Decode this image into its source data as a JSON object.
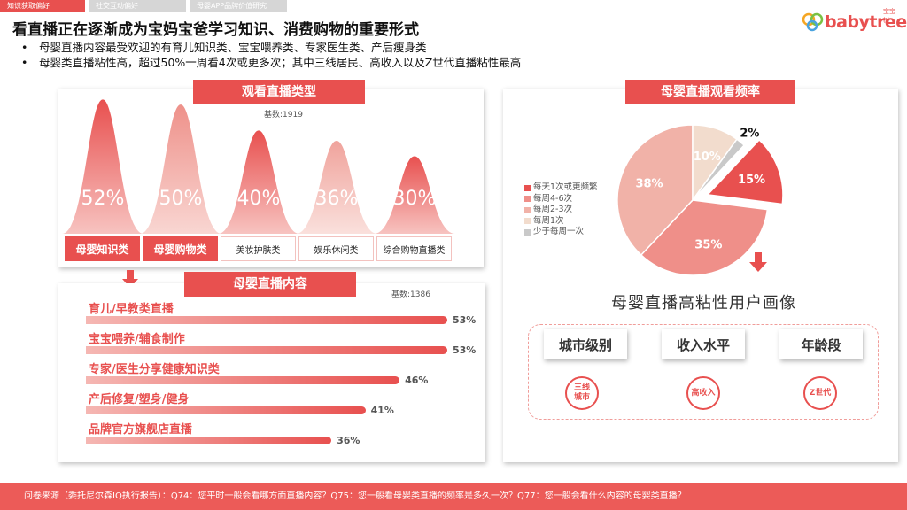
{
  "tabs": [
    "知识获取偏好",
    "社交互动偏好",
    "母婴APP品牌价值研究"
  ],
  "logo": {
    "text": "babytree",
    "cn": "宝宝树"
  },
  "title": "看直播正在逐渐成为宝妈宝爸学习知识、消费购物的重要形式",
  "bullets": [
    "母婴直播内容最受欢迎的有育儿知识类、宝宝喂养类、专家医生类、产后瘦身类",
    "母婴类直播粘性高，超过50%一周看4次或更多次；其中三线居民、高收入以及Z世代直播粘性最高"
  ],
  "footer": "问卷来源（委托尼尔森IQ执行报告）：Q74：您平时一般会看哪方面直播内容？Q75：您一般看母婴类直播的频率是多久一次？Q77：您一般会看什么内容的母婴类直播？",
  "colors": {
    "accent": "#e8504f",
    "light": "#f3b0ad"
  },
  "chart_data": [
    {
      "type": "area",
      "title": "观看直播类型",
      "base": "基数:1919",
      "categories": [
        "母婴知识类",
        "母婴购物类",
        "美妆护肤类",
        "娱乐休闲类",
        "综合购物直播类"
      ],
      "values": [
        52,
        50,
        40,
        36,
        30
      ],
      "value_labels": [
        "52%",
        "50%",
        "40%",
        "36%",
        "30%"
      ],
      "highlighted": [
        true,
        true,
        false,
        false,
        false
      ]
    },
    {
      "type": "bar",
      "title": "母婴直播内容",
      "base": "基数:1386",
      "categories": [
        "育儿/早教类直播",
        "宝宝喂养/辅食制作",
        "专家/医生分享健康知识类",
        "产后修复/塑身/健身",
        "品牌官方旗舰店直播"
      ],
      "values": [
        53,
        53,
        46,
        41,
        36
      ],
      "value_labels": [
        "53%",
        "53%",
        "46%",
        "41%",
        "36%"
      ]
    },
    {
      "type": "pie",
      "title": "母婴直播观看频率",
      "categories": [
        "每天1次或更频繁",
        "每周4-6次",
        "每周2-3次",
        "每周1次",
        "少于每周一次"
      ],
      "values": [
        15,
        35,
        38,
        10,
        2
      ],
      "value_labels": [
        "15%",
        "35%",
        "38%",
        "10%",
        "2%"
      ],
      "colors": [
        "#e8504f",
        "#ef8f89",
        "#f1b2a8",
        "#f2dccd",
        "#c9c9c9"
      ]
    }
  ],
  "persona": {
    "title": "母婴直播高粘性用户画像",
    "tags": [
      "城市级别",
      "收入水平",
      "年龄段"
    ],
    "circles": [
      "三线城市",
      "高收入",
      "Z世代"
    ]
  }
}
